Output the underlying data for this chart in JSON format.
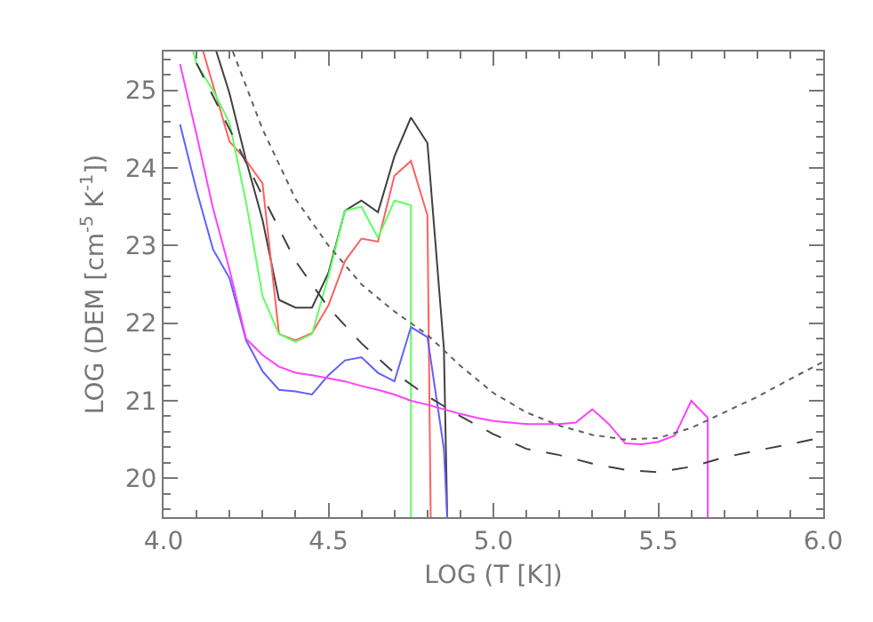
{
  "chart_data": {
    "type": "line",
    "xlabel": "LOG (T [K])",
    "ylabel": "LOG (DEM [cm$^{-5}$ K$^{-1}$])",
    "xlim": [
      4.0,
      6.0
    ],
    "xticks": [
      {
        "value": 4.0,
        "label": "4.0"
      },
      {
        "value": 4.5,
        "label": "4.5"
      },
      {
        "value": 5.0,
        "label": "5.0"
      },
      {
        "value": 5.5,
        "label": "5.5"
      },
      {
        "value": 6.0,
        "label": "6.0"
      }
    ],
    "ylim": [
      19.5,
      25.5
    ],
    "yticks": [
      20,
      21,
      22,
      23,
      24,
      25
    ],
    "grid": false,
    "marker": "none",
    "series": [
      {
        "color": "#404040",
        "line_style": "solid",
        "x": [
          4.16,
          4.2,
          4.25,
          4.3,
          4.35,
          4.4,
          4.45,
          4.5,
          4.55,
          4.6,
          4.65,
          4.7,
          4.75,
          4.8,
          4.85,
          4.86
        ],
        "values": [
          25.5,
          24.96,
          24.1,
          23.33,
          22.3,
          22.2,
          22.2,
          22.65,
          23.45,
          23.58,
          23.43,
          24.15,
          24.65,
          24.32,
          21.67,
          19.5
        ]
      },
      {
        "color": "#ff6060",
        "line_style": "solid",
        "x": [
          4.12,
          4.2,
          4.25,
          4.3,
          4.35,
          4.4,
          4.45,
          4.5,
          4.55,
          4.6,
          4.65,
          4.7,
          4.75,
          4.8,
          4.81
        ],
        "values": [
          25.5,
          24.34,
          24.1,
          23.8,
          21.86,
          21.78,
          21.87,
          22.23,
          22.8,
          23.09,
          23.05,
          23.9,
          24.09,
          23.39,
          19.5
        ]
      },
      {
        "color": "#60ff60",
        "line_style": "solid",
        "x": [
          4.09,
          4.1,
          4.15,
          4.2,
          4.25,
          4.3,
          4.35,
          4.4,
          4.45,
          4.5,
          4.55,
          4.6,
          4.65,
          4.7,
          4.75,
          4.75
        ],
        "values": [
          25.5,
          25.34,
          25.0,
          24.58,
          23.56,
          22.35,
          21.86,
          21.76,
          21.86,
          22.61,
          23.45,
          23.5,
          23.1,
          23.58,
          23.52,
          19.5
        ]
      },
      {
        "color": "#6060ff",
        "line_style": "solid",
        "x": [
          4.05,
          4.1,
          4.15,
          4.2,
          4.25,
          4.3,
          4.35,
          4.4,
          4.45,
          4.5,
          4.55,
          4.6,
          4.65,
          4.7,
          4.75,
          4.8,
          4.85,
          4.86
        ],
        "values": [
          24.56,
          23.71,
          22.95,
          22.58,
          21.78,
          21.38,
          21.14,
          21.12,
          21.08,
          21.33,
          21.52,
          21.56,
          21.36,
          21.25,
          21.95,
          21.82,
          20.38,
          19.5
        ]
      },
      {
        "color": "#ff40ff",
        "line_style": "solid",
        "x": [
          4.05,
          4.1,
          4.15,
          4.2,
          4.25,
          4.3,
          4.35,
          4.4,
          4.45,
          4.5,
          4.55,
          4.6,
          4.65,
          4.7,
          4.75,
          4.8,
          4.85,
          4.9,
          4.95,
          5.0,
          5.05,
          5.1,
          5.15,
          5.2,
          5.25,
          5.3,
          5.35,
          5.4,
          5.45,
          5.5,
          5.55,
          5.6,
          5.65,
          5.65
        ],
        "values": [
          25.34,
          24.43,
          23.48,
          22.69,
          21.8,
          21.59,
          21.44,
          21.36,
          21.33,
          21.29,
          21.25,
          21.19,
          21.14,
          21.08,
          21.0,
          20.95,
          20.89,
          20.83,
          20.78,
          20.74,
          20.72,
          20.7,
          20.7,
          20.7,
          20.72,
          20.89,
          20.7,
          20.45,
          20.44,
          20.47,
          20.55,
          21.0,
          20.78,
          19.5
        ]
      },
      {
        "color": "#404040",
        "line_style": "dashed",
        "x": [
          4.1,
          4.2,
          4.3,
          4.4,
          4.5,
          4.6,
          4.7,
          4.8,
          4.9,
          5.0,
          5.1,
          5.2,
          5.3,
          5.4,
          5.5,
          5.6,
          5.7,
          5.8,
          5.9,
          6.0
        ],
        "values": [
          25.35,
          24.5,
          23.64,
          22.8,
          22.2,
          21.74,
          21.36,
          21.06,
          20.8,
          20.57,
          20.38,
          20.3,
          20.19,
          20.11,
          20.08,
          20.15,
          20.27,
          20.36,
          20.44,
          20.53
        ]
      },
      {
        "color": "#606060",
        "line_style": "dotted",
        "x": [
          4.21,
          4.3,
          4.4,
          4.5,
          4.6,
          4.7,
          4.8,
          4.9,
          5.0,
          5.1,
          5.2,
          5.3,
          5.4,
          5.5,
          5.6,
          5.7,
          5.8,
          5.9,
          6.0
        ],
        "values": [
          25.5,
          24.5,
          23.6,
          23.0,
          22.5,
          22.15,
          21.85,
          21.45,
          21.1,
          20.85,
          20.68,
          20.56,
          20.5,
          20.52,
          20.65,
          20.85,
          21.05,
          21.28,
          21.5
        ]
      }
    ]
  }
}
